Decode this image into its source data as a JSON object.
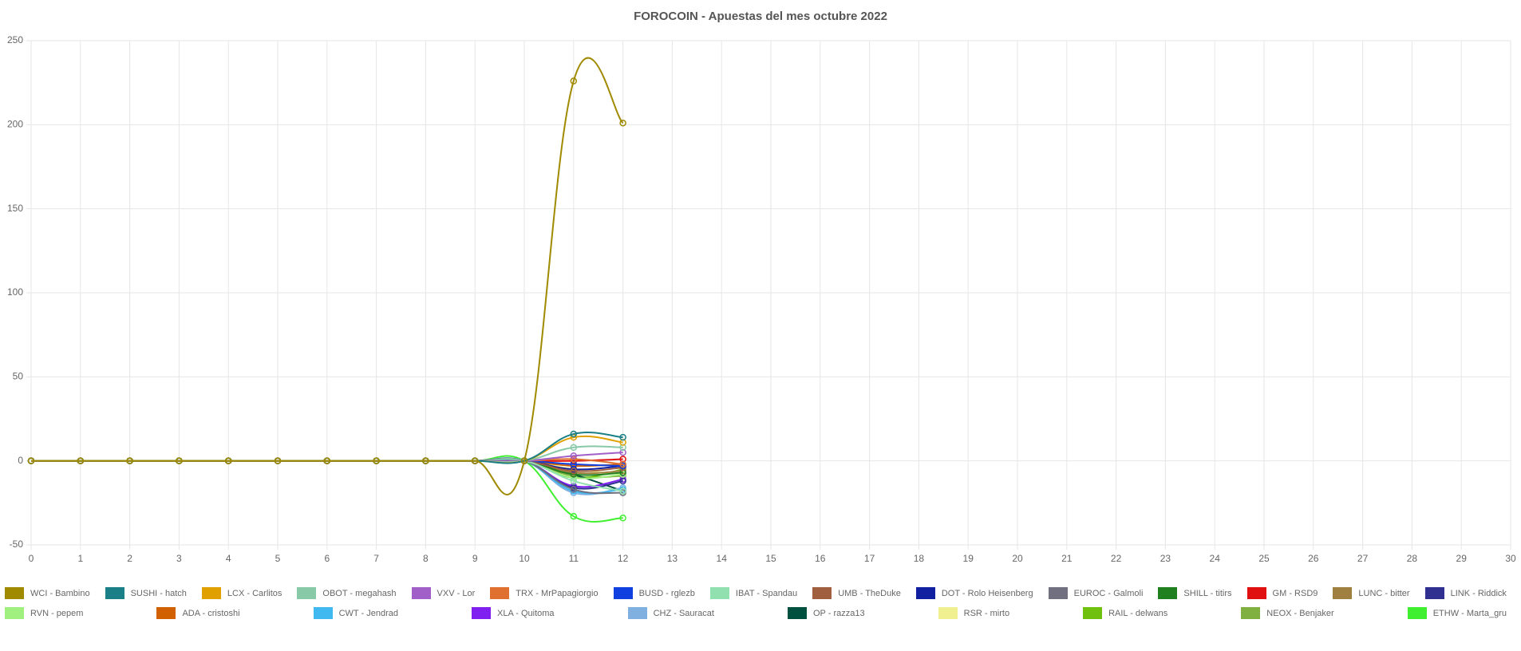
{
  "chart_data": {
    "type": "line",
    "title": "FOROCOIN - Apuestas del mes octubre 2022",
    "x": [
      0,
      1,
      2,
      3,
      4,
      5,
      6,
      7,
      8,
      9,
      10,
      11,
      12
    ],
    "xlim": [
      0,
      30
    ],
    "xticks": [
      0,
      1,
      2,
      3,
      4,
      5,
      6,
      7,
      8,
      9,
      10,
      11,
      12,
      13,
      14,
      15,
      16,
      17,
      18,
      19,
      20,
      21,
      22,
      23,
      24,
      25,
      26,
      27,
      28,
      29,
      30
    ],
    "ylim": [
      -50,
      250
    ],
    "yticks": [
      -50,
      0,
      50,
      100,
      150,
      200,
      250
    ],
    "grid": true,
    "series": [
      {
        "name": "WCI - Bambino",
        "color": "#a08a00",
        "values": [
          0,
          0,
          0,
          0,
          0,
          0,
          0,
          0,
          0,
          0,
          0,
          226,
          201
        ]
      },
      {
        "name": "SUSHI - hatch",
        "color": "#1a7f86",
        "values": [
          0,
          0,
          0,
          0,
          0,
          0,
          0,
          0,
          0,
          0,
          0,
          16,
          14
        ]
      },
      {
        "name": "LCX - Carlitos",
        "color": "#e0a000",
        "values": [
          0,
          0,
          0,
          0,
          0,
          0,
          0,
          0,
          0,
          0,
          0,
          14,
          11
        ]
      },
      {
        "name": "OBOT - megahash",
        "color": "#88c9a8",
        "values": [
          0,
          0,
          0,
          0,
          0,
          0,
          0,
          0,
          0,
          0,
          0,
          8,
          8
        ]
      },
      {
        "name": "VXV - Lor",
        "color": "#a060c8",
        "values": [
          0,
          0,
          0,
          0,
          0,
          0,
          0,
          0,
          0,
          0,
          0,
          3,
          5
        ]
      },
      {
        "name": "TRX - MrPapagiorgio",
        "color": "#e07030",
        "values": [
          0,
          0,
          0,
          0,
          0,
          0,
          0,
          0,
          0,
          0,
          0,
          1,
          -2
        ]
      },
      {
        "name": "BUSD - rglezb",
        "color": "#1040e0",
        "values": [
          0,
          0,
          0,
          0,
          0,
          0,
          0,
          0,
          0,
          0,
          0,
          -2,
          -3
        ]
      },
      {
        "name": "IBAT - Spandau",
        "color": "#90e0b0",
        "values": [
          0,
          0,
          0,
          0,
          0,
          0,
          0,
          0,
          0,
          0,
          0,
          -12,
          -18
        ]
      },
      {
        "name": "UMB - TheDuke",
        "color": "#a06040",
        "values": [
          0,
          0,
          0,
          0,
          0,
          0,
          0,
          0,
          0,
          0,
          0,
          -6,
          -4
        ]
      },
      {
        "name": "DOT - Rolo Heisenberg",
        "color": "#1020a0",
        "values": [
          0,
          0,
          0,
          0,
          0,
          0,
          0,
          0,
          0,
          0,
          0,
          -5,
          -3
        ]
      },
      {
        "name": "EUROC - Galmoli",
        "color": "#707080",
        "values": [
          0,
          0,
          0,
          0,
          0,
          0,
          0,
          0,
          0,
          0,
          0,
          -17,
          -19
        ]
      },
      {
        "name": "SHILL - titirs",
        "color": "#208020",
        "values": [
          0,
          0,
          0,
          0,
          0,
          0,
          0,
          0,
          0,
          0,
          0,
          -8,
          -7
        ]
      },
      {
        "name": "GM - RSD9",
        "color": "#e01010",
        "values": [
          0,
          0,
          0,
          0,
          0,
          0,
          0,
          0,
          0,
          0,
          0,
          0,
          1
        ]
      },
      {
        "name": "LUNC - bitter",
        "color": "#a08040",
        "values": [
          0,
          0,
          0,
          0,
          0,
          0,
          0,
          0,
          0,
          0,
          0,
          -7,
          -6
        ]
      },
      {
        "name": "LINK - Riddick",
        "color": "#303090",
        "values": [
          0,
          0,
          0,
          0,
          0,
          0,
          0,
          0,
          0,
          0,
          0,
          -16,
          -12
        ]
      },
      {
        "name": "RVN - pepem",
        "color": "#a0f080",
        "values": [
          0,
          0,
          0,
          0,
          0,
          0,
          0,
          0,
          0,
          0,
          0,
          -10,
          -8
        ]
      },
      {
        "name": "ADA - cristoshi",
        "color": "#d06000",
        "values": [
          0,
          0,
          0,
          0,
          0,
          0,
          0,
          0,
          0,
          0,
          0,
          -3,
          -2
        ]
      },
      {
        "name": "CWT - Jendrad",
        "color": "#40b8f0",
        "values": [
          0,
          0,
          0,
          0,
          0,
          0,
          0,
          0,
          0,
          0,
          0,
          -18,
          -17
        ]
      },
      {
        "name": "XLA - Quitoma",
        "color": "#8020f0",
        "values": [
          0,
          0,
          0,
          0,
          0,
          0,
          0,
          0,
          0,
          0,
          0,
          -15,
          -11
        ]
      },
      {
        "name": "CHZ - Sauracat",
        "color": "#80b0e0",
        "values": [
          0,
          0,
          0,
          0,
          0,
          0,
          0,
          0,
          0,
          0,
          0,
          -19,
          -16
        ]
      },
      {
        "name": "OP - razza13",
        "color": "#005040",
        "values": [
          0,
          0,
          0,
          0,
          0,
          0,
          0,
          0,
          0,
          0,
          0,
          -8,
          -18
        ]
      },
      {
        "name": "RSR - mirto",
        "color": "#f0f090",
        "values": [
          0,
          0,
          0,
          0,
          0,
          0,
          0,
          0,
          0,
          0,
          0,
          -5,
          -8
        ]
      },
      {
        "name": "RAIL - delwans",
        "color": "#70c010",
        "values": [
          0,
          0,
          0,
          0,
          0,
          0,
          0,
          0,
          0,
          0,
          0,
          -10,
          -5
        ]
      },
      {
        "name": "NEOX - Benjaker",
        "color": "#80b040",
        "values": [
          0,
          0,
          0,
          0,
          0,
          0,
          0,
          0,
          0,
          0,
          0,
          -9,
          -9
        ]
      },
      {
        "name": "ETHW - Marta_gru",
        "color": "#40f030",
        "values": [
          0,
          0,
          0,
          0,
          0,
          0,
          0,
          0,
          0,
          0,
          0,
          -33,
          -34
        ]
      }
    ]
  }
}
